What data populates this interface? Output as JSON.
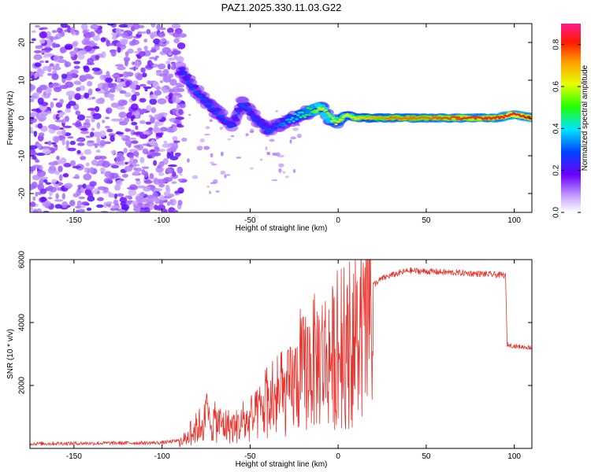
{
  "title": "PAZ1.2025.330.11.03.G22",
  "chart_data": [
    {
      "type": "heatmap",
      "name": "spectrogram",
      "xlabel": "Height of straight line (km)",
      "ylabel": "Frequency (Hz)",
      "xlim": [
        -175,
        110
      ],
      "ylim": [
        -25,
        25
      ],
      "xticks": [
        -150,
        -100,
        -50,
        0,
        50,
        100
      ],
      "yticks": [
        -20,
        -10,
        0,
        10,
        20
      ],
      "xtick_labels": [
        "-150",
        "-100",
        "-50",
        "0",
        "50",
        "100"
      ],
      "ytick_labels": [
        "-20",
        "-10",
        "0",
        "10",
        "20"
      ],
      "colorbar": {
        "label": "Normalized spectral amplitude",
        "range": [
          0.0,
          0.9
        ],
        "ticks": [
          0.0,
          0.2,
          0.4,
          0.6,
          0.8
        ],
        "tick_labels": [
          "0.0",
          "0.2",
          "0.4",
          "0.6",
          "0.8"
        ]
      },
      "ridge": {
        "x": [
          -90,
          -85,
          -80,
          -75,
          -70,
          -65,
          -60,
          -55,
          -50,
          -45,
          -40,
          -35,
          -30,
          -25,
          -20,
          -15,
          -10,
          -5,
          0,
          5,
          10,
          20,
          30,
          50,
          70,
          90,
          100,
          110
        ],
        "y": [
          13,
          10,
          7,
          4,
          2,
          0,
          -2,
          4,
          2,
          -1,
          -3,
          -2,
          -1,
          0,
          1,
          2,
          3,
          0,
          -1,
          1,
          0,
          0,
          0,
          0,
          0,
          0,
          1,
          0
        ],
        "amplitude": [
          0.25,
          0.3,
          0.3,
          0.3,
          0.3,
          0.3,
          0.28,
          0.3,
          0.3,
          0.28,
          0.3,
          0.3,
          0.35,
          0.4,
          0.45,
          0.5,
          0.6,
          0.55,
          0.65,
          0.6,
          0.65,
          0.7,
          0.75,
          0.75,
          0.8,
          0.8,
          0.85,
          0.8
        ]
      }
    },
    {
      "type": "line",
      "name": "snr",
      "xlabel": "Height of straight line (km)",
      "ylabel": "SNR (10 * v/v)",
      "xlim": [
        -175,
        110
      ],
      "ylim": [
        0,
        6000
      ],
      "xticks": [
        -150,
        -100,
        -50,
        0,
        50,
        100
      ],
      "yticks": [
        2000,
        4000,
        6000
      ],
      "xtick_labels": [
        "-150",
        "-100",
        "-50",
        "0",
        "50",
        "100"
      ],
      "ytick_labels": [
        "2000",
        "4000",
        "6000"
      ],
      "color": "#e8312b",
      "envelope": {
        "x": [
          -175,
          -100,
          -90,
          -85,
          -80,
          -75,
          -70,
          -65,
          -60,
          -55,
          -50,
          -45,
          -40,
          -35,
          -30,
          -25,
          -20,
          -15,
          -10,
          -5,
          0,
          5,
          10,
          15,
          20,
          25,
          30,
          40,
          60,
          80,
          95,
          96,
          100,
          110
        ],
        "y": [
          150,
          180,
          250,
          500,
          900,
          1200,
          1100,
          1000,
          900,
          1000,
          1100,
          1500,
          1800,
          2000,
          2200,
          2700,
          3200,
          3600,
          3800,
          3900,
          3900,
          4000,
          4300,
          4700,
          5200,
          5400,
          5500,
          5650,
          5600,
          5550,
          5500,
          3300,
          3250,
          3200
        ]
      }
    }
  ]
}
